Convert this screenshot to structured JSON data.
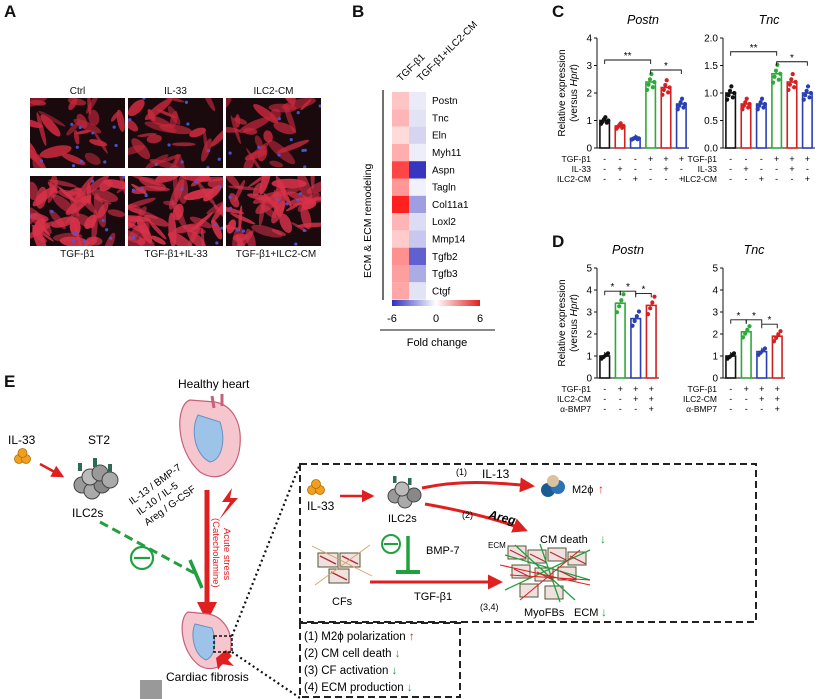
{
  "panelA": {
    "label": "A",
    "top_labels": [
      "Ctrl",
      "IL-33",
      "ILC2-CM"
    ],
    "bottom_labels": [
      "TGF-β1",
      "TGF-β1+IL-33",
      "TGF-β1+ILC2-CM"
    ]
  },
  "panelB": {
    "label": "B",
    "col_labels": [
      "TGF-β1",
      "TGF-β1+ILC2-CM"
    ],
    "genes": [
      "Postn",
      "Tnc",
      "Eln",
      "Myh11",
      "Aspn",
      "Tagln",
      "Col11a1",
      "Loxl2",
      "Mmp14",
      "Tgfb2",
      "Tgfb3",
      "Ctgf"
    ],
    "values_tgfb1": [
      1.6,
      2.0,
      1.0,
      2.2,
      5.0,
      2.8,
      6.0,
      2.0,
      1.4,
      3.0,
      2.6,
      2.4
    ],
    "values_tgfb1_ilc2cm": [
      -0.6,
      -0.8,
      -1.2,
      -0.5,
      -5.8,
      -0.4,
      -2.8,
      -1.0,
      -1.6,
      -4.6,
      -2.4,
      -0.8
    ],
    "side_label": "ECM & ECM remodeling",
    "scale_ticks": [
      "-6",
      "0",
      "6"
    ],
    "scale_title": "Fold change",
    "colors": {
      "low": "#2f2fbf",
      "mid": "#ffffff",
      "high": "#e02020"
    }
  },
  "panelC": {
    "label": "C",
    "ylabel": "Relative expression",
    "ylabel_sub_pre": "(versus ",
    "ylabel_sub_it": "Hprt",
    "ylabel_sub_post": ")",
    "row_labels": [
      "TGF-β1",
      "IL-33",
      "ILC2-CM"
    ],
    "signs": [
      [
        "-",
        "-",
        "-",
        "+",
        "+",
        "+"
      ],
      [
        "-",
        "+",
        "-",
        "-",
        "+",
        "-"
      ],
      [
        "-",
        "-",
        "+",
        "-",
        "-",
        "+"
      ]
    ],
    "colors": [
      "#111111",
      "#d42020",
      "#2a3fb0",
      "#2eaa3a",
      "#d42020",
      "#2a3fb0"
    ],
    "charts": [
      {
        "title": "Postn",
        "ylim": [
          0,
          4
        ],
        "yticks": [
          0,
          1,
          2,
          3,
          4
        ],
        "values": [
          1.0,
          0.8,
          0.35,
          2.4,
          2.2,
          1.6
        ],
        "sig": [
          {
            "from": 0,
            "to": 3,
            "label": "**"
          },
          {
            "from": 3,
            "to": 5,
            "label": "*"
          }
        ]
      },
      {
        "title": "Tnc",
        "ylim": [
          0,
          2
        ],
        "yticks": [
          "0.0",
          "0.5",
          "1.0",
          "1.5",
          "2.0"
        ],
        "values": [
          1.0,
          0.8,
          0.8,
          1.35,
          1.2,
          1.0
        ],
        "sig": [
          {
            "from": 0,
            "to": 3,
            "label": "**"
          },
          {
            "from": 3,
            "to": 5,
            "label": "*"
          }
        ]
      }
    ]
  },
  "panelD": {
    "label": "D",
    "ylabel": "Relative expression",
    "ylabel_sub_pre": "(versus ",
    "ylabel_sub_it": "Hprt",
    "ylabel_sub_post": ")",
    "row_labels": [
      "TGF-β1",
      "ILC2-CM",
      "α-BMP7"
    ],
    "signs": [
      [
        "-",
        "+",
        "+",
        "+"
      ],
      [
        "-",
        "-",
        "+",
        "+"
      ],
      [
        "-",
        "-",
        "-",
        "+"
      ]
    ],
    "colors": [
      "#111111",
      "#2eaa3a",
      "#2a3fb0",
      "#d42020"
    ],
    "charts": [
      {
        "title": "Postn",
        "ylim": [
          0,
          5
        ],
        "yticks": [
          0,
          1,
          2,
          3,
          4,
          5
        ],
        "values": [
          1.0,
          3.4,
          2.7,
          3.3
        ],
        "sig": [
          {
            "from": 0,
            "to": 1,
            "label": "*"
          },
          {
            "from": 1,
            "to": 2,
            "label": "*"
          },
          {
            "from": 2,
            "to": 3,
            "label": "*"
          }
        ]
      },
      {
        "title": "Tnc",
        "ylim": [
          0,
          5
        ],
        "yticks": [
          0,
          1,
          2,
          3,
          4,
          5
        ],
        "values": [
          1.0,
          2.1,
          1.2,
          1.9
        ],
        "sig": [
          {
            "from": 0,
            "to": 1,
            "label": "*"
          },
          {
            "from": 1,
            "to": 2,
            "label": "*"
          },
          {
            "from": 2,
            "to": 3,
            "label": "*"
          }
        ]
      }
    ]
  },
  "panelE": {
    "label": "E",
    "il33": "IL-33",
    "st2": "ST2",
    "ilc2s": "ILC2s",
    "healthy_heart": "Healthy heart",
    "cytokines": [
      "IL-13 / BMP-7",
      "IL-10 / IL-5",
      "Areg / G-CSF"
    ],
    "acute_stress": "Acute stress",
    "catecholamine": "(Catecholamine)",
    "cardiac_fibrosis": "Cardiac fibrosis",
    "box": {
      "il33": "IL-33",
      "ilc2s": "ILC2s",
      "path1_num": "(1)",
      "path1_label": "IL-13",
      "m2": "M2ϕ",
      "path2_num": "(2)",
      "path2_label": "Areg",
      "ecm": "ECM",
      "cm_death": "CM death",
      "bmp7": "BMP-7",
      "cfs": "CFs",
      "tgfb1": "TGF-β1",
      "num34": "(3,4)",
      "myofbs": "MyoFBs",
      "ecm_bottom": "ECM"
    },
    "summary": [
      {
        "text": "(1) M2ϕ polarization",
        "arrow": "↑",
        "color": "#e02020"
      },
      {
        "text": "(2) CM cell death",
        "arrow": "↓",
        "color": "#22a040"
      },
      {
        "text": "(3) CF activation",
        "arrow": "↓",
        "color": "#22a040"
      },
      {
        "text": "(4) ECM production",
        "arrow": "↓",
        "color": "#22a040"
      }
    ]
  }
}
